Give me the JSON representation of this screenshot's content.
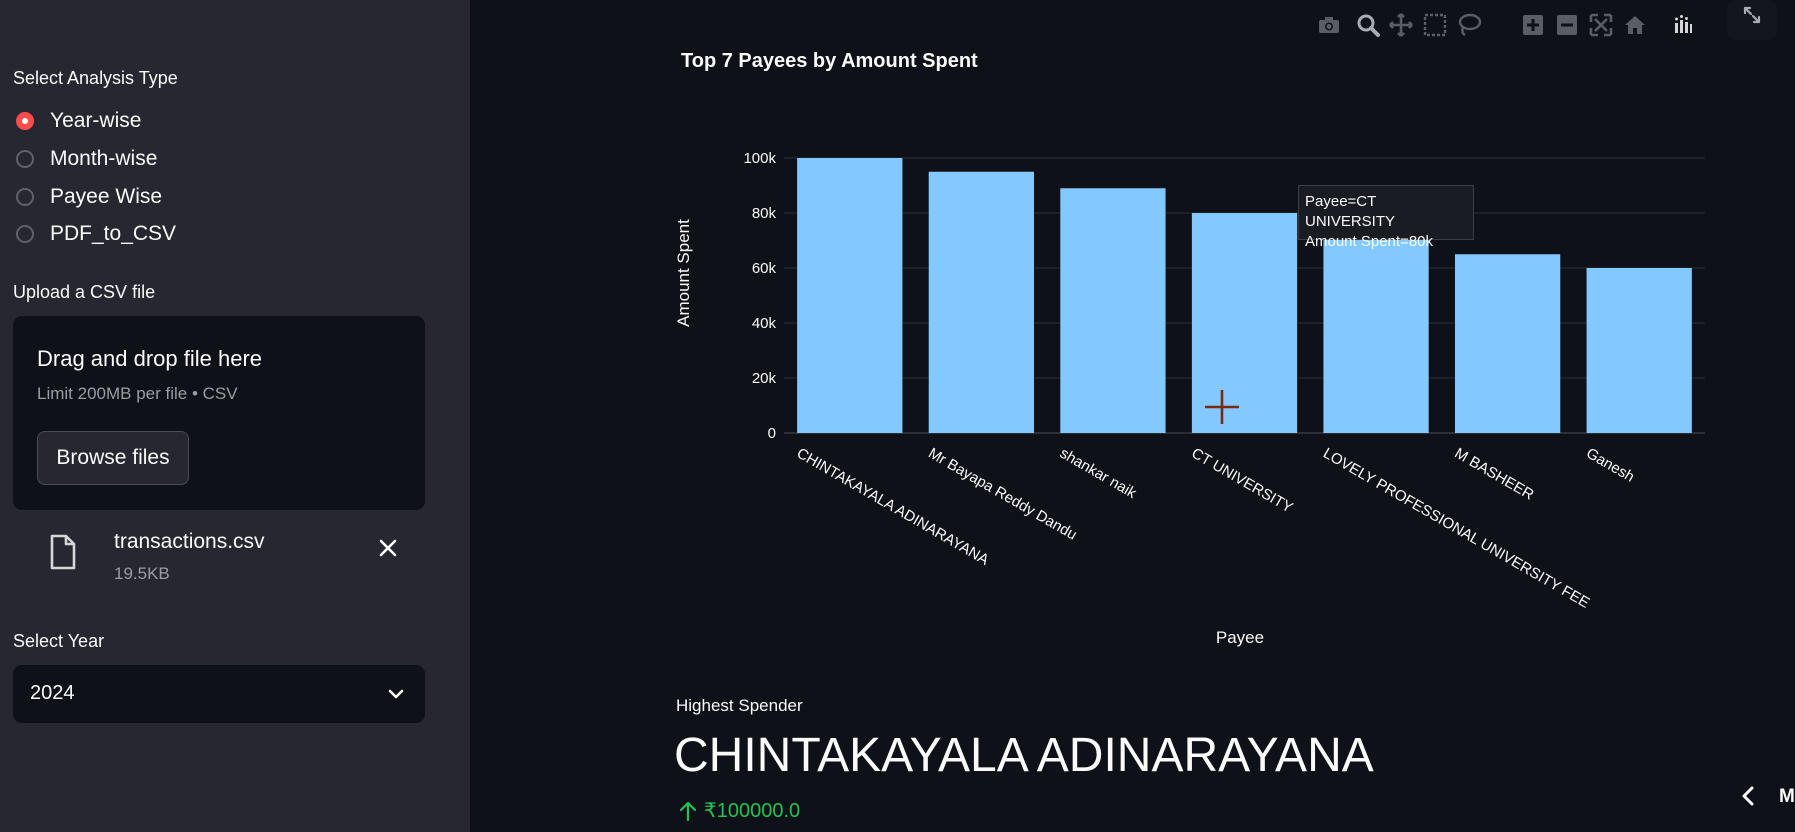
{
  "sidebar": {
    "analysis_label": "Select Analysis Type",
    "options": [
      {
        "label": "Year-wise",
        "selected": true
      },
      {
        "label": "Month-wise",
        "selected": false
      },
      {
        "label": "Payee Wise",
        "selected": false
      },
      {
        "label": "PDF_to_CSV",
        "selected": false
      }
    ],
    "upload_label": "Upload a CSV file",
    "dropzone": {
      "title": "Drag and drop file here",
      "limit": "Limit 200MB per file • CSV",
      "browse_label": "Browse files"
    },
    "file": {
      "name": "transactions.csv",
      "size": "19.5KB"
    },
    "year_label": "Select Year",
    "year_value": "2024"
  },
  "toolbar": {
    "icons": [
      "camera-icon",
      "zoom-icon",
      "pan-icon",
      "box-select-icon",
      "lasso-select-icon",
      "zoom-in-icon",
      "zoom-out-icon",
      "autoscale-icon",
      "reset-axes-icon",
      "plotly-logo-icon"
    ]
  },
  "chart_data": {
    "type": "bar",
    "title": "Top 7 Payees by Amount Spent",
    "xlabel": "Payee",
    "ylabel": "Amount Spent",
    "categories": [
      "CHINTAKAYALA ADINARAYANA",
      "Mr Bayapa Reddy Dandu",
      "shankar naik",
      "CT UNIVERSITY",
      "LOVELY PROFESSIONAL UNIVERSITY FEE",
      "M BASHEER",
      "Ganesh"
    ],
    "values": [
      100000,
      95000,
      89000,
      80000,
      71000,
      65000,
      60000
    ],
    "ylim": [
      0,
      100000
    ],
    "yticks": [
      0,
      20000,
      40000,
      60000,
      80000,
      100000
    ],
    "ytick_labels": [
      "0",
      "20k",
      "40k",
      "60k",
      "80k",
      "100k"
    ],
    "bar_color": "#83c9ff",
    "grid": true,
    "tooltip": {
      "line1": "Payee=CT UNIVERSITY",
      "line2": "Amount Spent=80k"
    }
  },
  "metric": {
    "label": "Highest Spender",
    "value": "CHINTAKAYALA ADINARAYANA",
    "delta": "₹100000.0",
    "delta_color": "#21c354"
  },
  "edge_text": "M",
  "colors": {
    "accent": "#ff4b4b",
    "background": "#0e1117",
    "sidebar": "#262730"
  }
}
